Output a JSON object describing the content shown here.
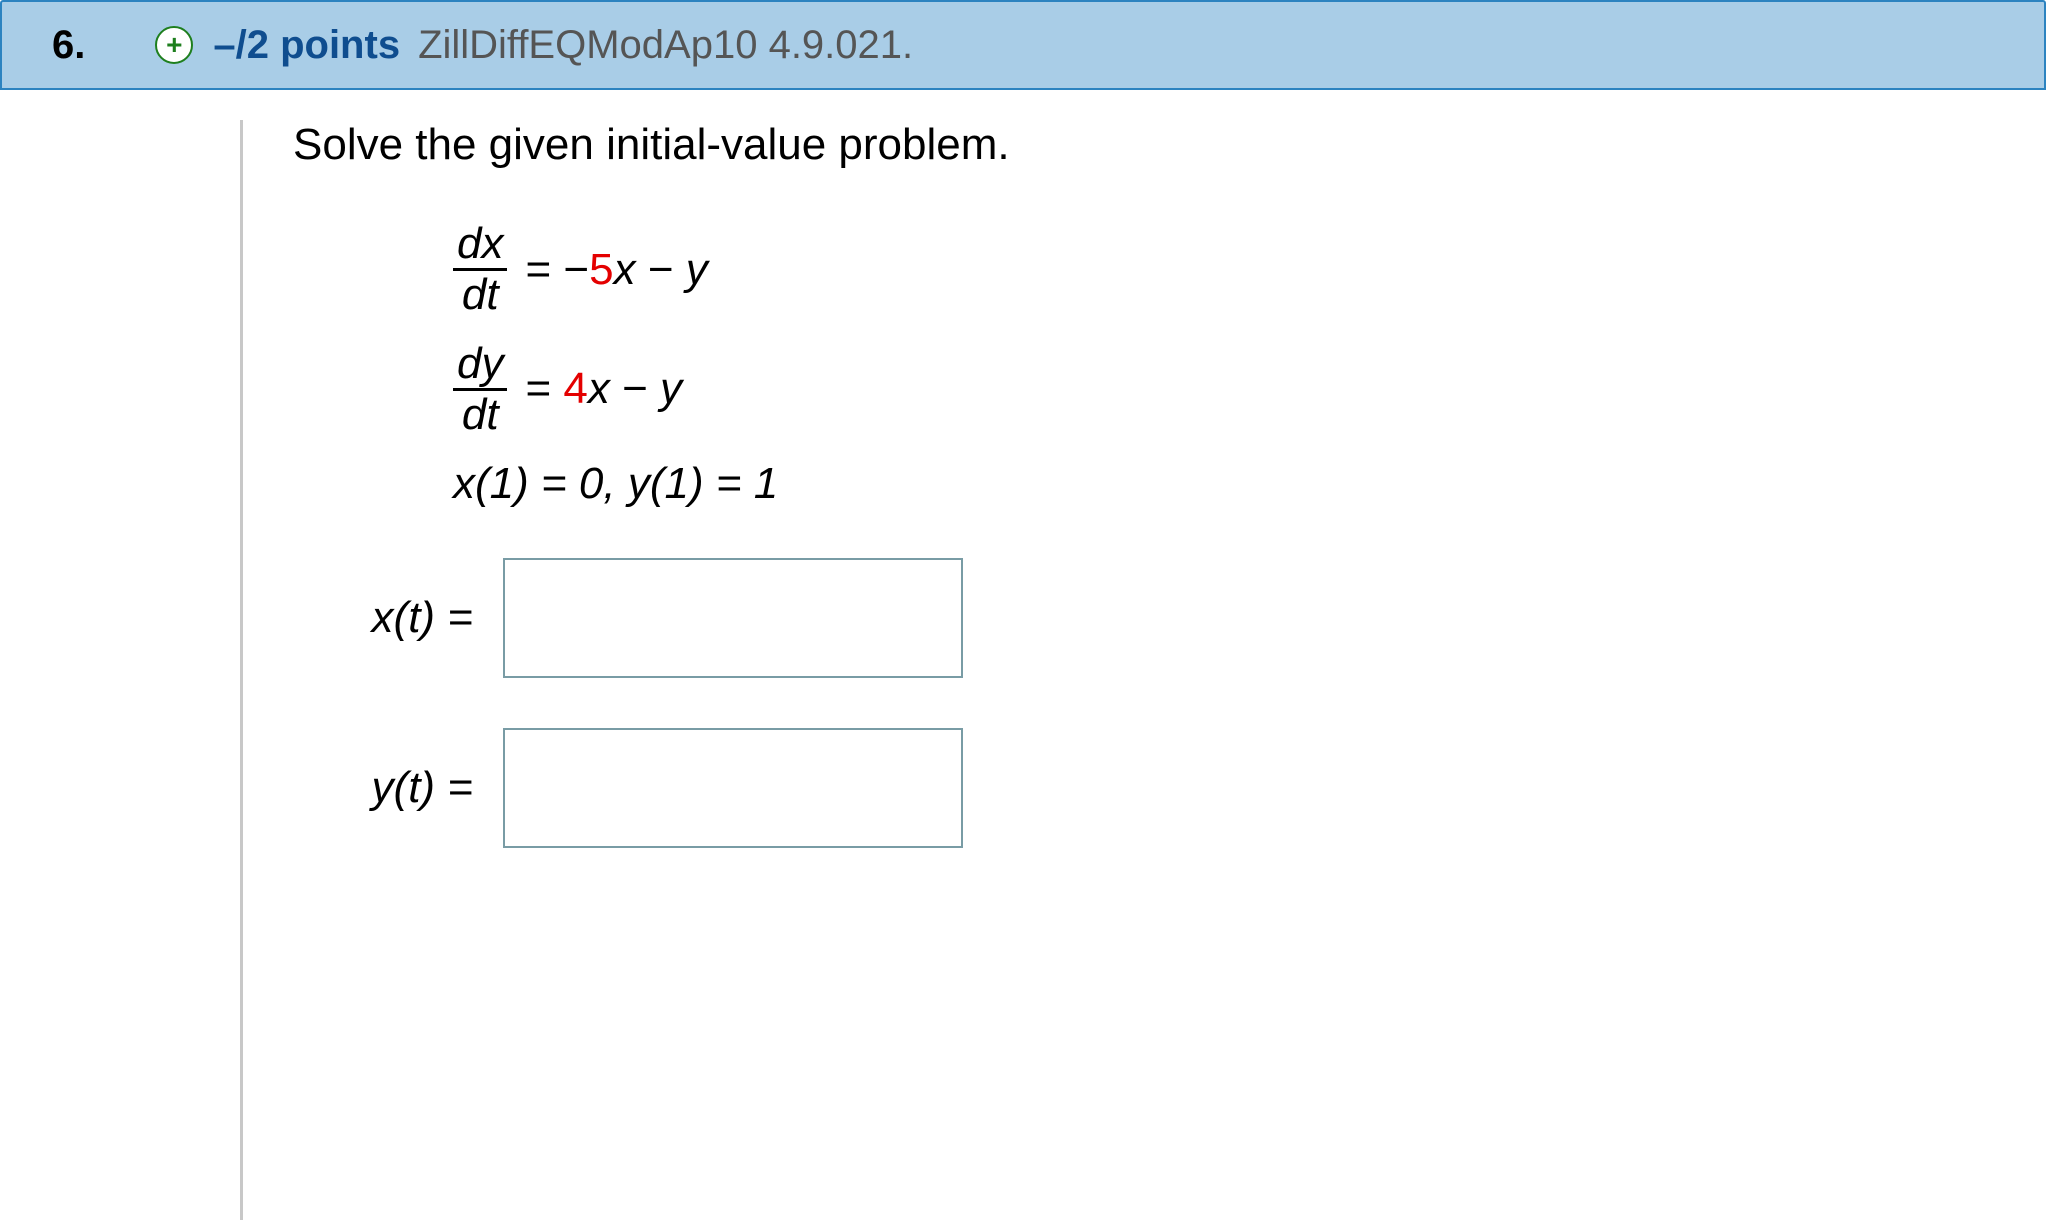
{
  "header": {
    "question_number": "6.",
    "expand_symbol": "+",
    "points_text": "–/2 points",
    "reference": "ZillDiffEQModAp10 4.9.021."
  },
  "problem": {
    "prompt": "Solve the given initial-value problem.",
    "eq1": {
      "num": "dx",
      "den": "dt",
      "eq": " = ",
      "minus1": "−",
      "coef1": "5",
      "var1": "x",
      "op": " − ",
      "var2": "y"
    },
    "eq2": {
      "num": "dy",
      "den": "dt",
      "eq": " = ",
      "coef1": "4",
      "var1": "x",
      "op": " − ",
      "var2": "y"
    },
    "ic": "x(1) = 0, y(1) = 1"
  },
  "answers": {
    "x_label": "x(t) = ",
    "y_label": "y(t) = ",
    "x_value": "",
    "y_value": ""
  },
  "colors": {
    "header_bg": "#A9CDE7",
    "header_border": "#2C83C0",
    "points": "#0F4D8F",
    "ref": "#555555",
    "red": "#E40000",
    "input_border": "#799CA5",
    "divider": "#C8C8C8"
  }
}
